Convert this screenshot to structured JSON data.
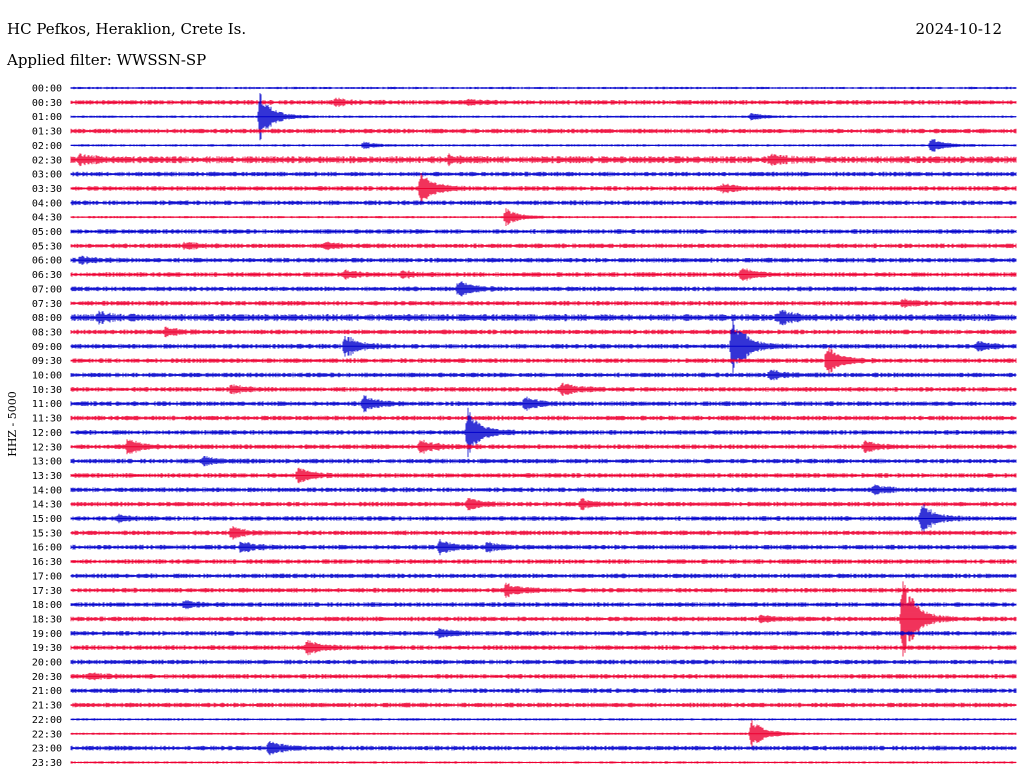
{
  "header": {
    "station": "HC Pefkos, Heraklion, Crete Is.",
    "filter": "Applied filter: WWSSN-SP",
    "date": "2024-10-12"
  },
  "chart_data": {
    "type": "line",
    "title": "HC Pefkos, Heraklion, Crete Is.",
    "subtitle": "Applied filter: WWSSN-SP",
    "ylabel": "HHZ - 5000",
    "colors": {
      "even": "#0000cc",
      "odd": "#ee0033"
    },
    "rows": [
      "00:00",
      "00:30",
      "01:00",
      "01:30",
      "02:00",
      "02:30",
      "03:00",
      "03:30",
      "04:00",
      "04:30",
      "05:00",
      "05:30",
      "06:00",
      "06:30",
      "07:00",
      "07:30",
      "08:00",
      "08:30",
      "09:00",
      "09:30",
      "10:00",
      "10:30",
      "11:00",
      "11:30",
      "12:00",
      "12:30",
      "13:00",
      "13:30",
      "14:00",
      "14:30",
      "15:00",
      "15:30",
      "16:00",
      "16:30",
      "17:00",
      "17:30",
      "18:00",
      "18:30",
      "19:00",
      "19:30",
      "20:00",
      "20:30",
      "21:00",
      "21:30",
      "22:00",
      "22:30",
      "23:00",
      "23:30"
    ],
    "noise": [
      1,
      2,
      1,
      2,
      1,
      3,
      2,
      2,
      2,
      1,
      2,
      2,
      2,
      2,
      2,
      2,
      3,
      2,
      2,
      2,
      2,
      2,
      2,
      2,
      2,
      2,
      2,
      2,
      2,
      2,
      2,
      2,
      2,
      2,
      2,
      2,
      2,
      2,
      2,
      2,
      2,
      2,
      2,
      2,
      1,
      1,
      2,
      1
    ],
    "events": [
      {
        "row": 1,
        "t": 0.28,
        "amp": 3
      },
      {
        "row": 1,
        "t": 0.42,
        "amp": 2
      },
      {
        "row": 2,
        "t": 0.2,
        "amp": 22
      },
      {
        "row": 2,
        "t": 0.72,
        "amp": 3
      },
      {
        "row": 4,
        "t": 0.31,
        "amp": 3
      },
      {
        "row": 4,
        "t": 0.91,
        "amp": 7
      },
      {
        "row": 5,
        "t": 0.01,
        "amp": 4
      },
      {
        "row": 5,
        "t": 0.4,
        "amp": 3
      },
      {
        "row": 5,
        "t": 0.74,
        "amp": 4
      },
      {
        "row": 7,
        "t": 0.37,
        "amp": 14
      },
      {
        "row": 7,
        "t": 0.69,
        "amp": 4
      },
      {
        "row": 9,
        "t": 0.46,
        "amp": 8
      },
      {
        "row": 11,
        "t": 0.12,
        "amp": 3
      },
      {
        "row": 11,
        "t": 0.27,
        "amp": 3
      },
      {
        "row": 12,
        "t": 0.01,
        "amp": 3
      },
      {
        "row": 13,
        "t": 0.29,
        "amp": 3
      },
      {
        "row": 13,
        "t": 0.35,
        "amp": 3
      },
      {
        "row": 13,
        "t": 0.71,
        "amp": 6
      },
      {
        "row": 14,
        "t": 0.41,
        "amp": 7
      },
      {
        "row": 15,
        "t": 0.88,
        "amp": 3
      },
      {
        "row": 16,
        "t": 0.75,
        "amp": 6
      },
      {
        "row": 16,
        "t": 0.03,
        "amp": 4
      },
      {
        "row": 17,
        "t": 0.1,
        "amp": 4
      },
      {
        "row": 18,
        "t": 0.29,
        "amp": 11
      },
      {
        "row": 18,
        "t": 0.7,
        "amp": 30
      },
      {
        "row": 18,
        "t": 0.96,
        "amp": 4
      },
      {
        "row": 19,
        "t": 0.8,
        "amp": 14
      },
      {
        "row": 20,
        "t": 0.74,
        "amp": 4
      },
      {
        "row": 21,
        "t": 0.17,
        "amp": 4
      },
      {
        "row": 21,
        "t": 0.52,
        "amp": 6
      },
      {
        "row": 22,
        "t": 0.31,
        "amp": 7
      },
      {
        "row": 22,
        "t": 0.48,
        "amp": 6
      },
      {
        "row": 24,
        "t": 0.42,
        "amp": 22
      },
      {
        "row": 25,
        "t": 0.06,
        "amp": 7
      },
      {
        "row": 25,
        "t": 0.37,
        "amp": 7
      },
      {
        "row": 25,
        "t": 0.84,
        "amp": 5
      },
      {
        "row": 26,
        "t": 0.14,
        "amp": 4
      },
      {
        "row": 27,
        "t": 0.24,
        "amp": 8
      },
      {
        "row": 28,
        "t": 0.85,
        "amp": 4
      },
      {
        "row": 29,
        "t": 0.42,
        "amp": 5
      },
      {
        "row": 29,
        "t": 0.54,
        "amp": 4
      },
      {
        "row": 30,
        "t": 0.9,
        "amp": 14
      },
      {
        "row": 30,
        "t": 0.05,
        "amp": 3
      },
      {
        "row": 31,
        "t": 0.17,
        "amp": 5
      },
      {
        "row": 32,
        "t": 0.18,
        "amp": 5
      },
      {
        "row": 32,
        "t": 0.39,
        "amp": 6
      },
      {
        "row": 32,
        "t": 0.44,
        "amp": 4
      },
      {
        "row": 35,
        "t": 0.46,
        "amp": 6
      },
      {
        "row": 36,
        "t": 0.12,
        "amp": 3
      },
      {
        "row": 37,
        "t": 0.73,
        "amp": 3
      },
      {
        "row": 37,
        "t": 0.88,
        "amp": 40
      },
      {
        "row": 38,
        "t": 0.39,
        "amp": 4
      },
      {
        "row": 39,
        "t": 0.25,
        "amp": 7
      },
      {
        "row": 41,
        "t": 0.02,
        "amp": 3
      },
      {
        "row": 45,
        "t": 0.72,
        "amp": 14
      },
      {
        "row": 46,
        "t": 0.21,
        "amp": 7
      }
    ]
  }
}
